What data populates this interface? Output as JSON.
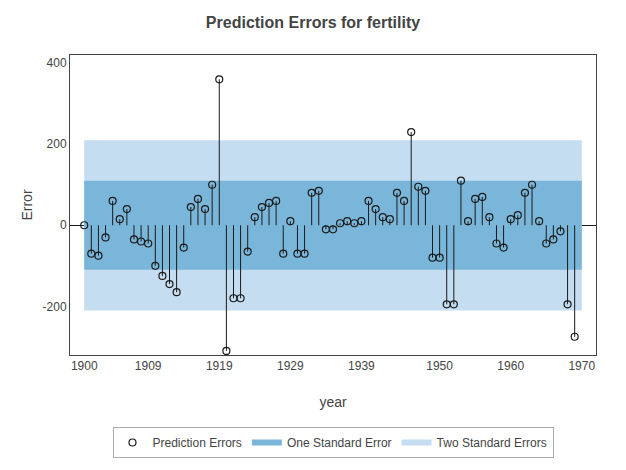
{
  "chart_data": {
    "type": "stem",
    "title": "Prediction Errors for fertility",
    "xlabel": "year",
    "ylabel": "Error",
    "x": [
      1900,
      1901,
      1902,
      1903,
      1904,
      1905,
      1906,
      1907,
      1908,
      1909,
      1910,
      1911,
      1912,
      1913,
      1914,
      1915,
      1916,
      1917,
      1918,
      1919,
      1920,
      1921,
      1922,
      1923,
      1924,
      1925,
      1926,
      1927,
      1928,
      1929,
      1930,
      1931,
      1932,
      1933,
      1934,
      1935,
      1936,
      1937,
      1938,
      1939,
      1940,
      1941,
      1942,
      1943,
      1944,
      1945,
      1946,
      1947,
      1948,
      1949,
      1950,
      1951,
      1952,
      1953,
      1954,
      1955,
      1956,
      1957,
      1958,
      1959,
      1960,
      1961,
      1962,
      1963,
      1964,
      1965,
      1966,
      1967,
      1968,
      1969
    ],
    "series": [
      {
        "name": "Prediction Errors",
        "color": "#1a1a1a",
        "marker": "circle-open",
        "values": [
          0,
          -70,
          -75,
          -30,
          60,
          15,
          40,
          -35,
          -40,
          -45,
          -100,
          -125,
          -145,
          -165,
          -55,
          45,
          65,
          40,
          100,
          360,
          -310,
          -180,
          -180,
          -65,
          20,
          45,
          55,
          60,
          -70,
          10,
          -70,
          -70,
          80,
          85,
          -10,
          -10,
          5,
          10,
          5,
          10,
          60,
          40,
          20,
          15,
          80,
          60,
          230,
          95,
          85,
          -80,
          -80,
          -195,
          -195,
          110,
          10,
          65,
          70,
          20,
          -45,
          -55,
          15,
          25,
          80,
          100,
          10,
          -45,
          -35,
          -15,
          -195,
          -275
        ]
      }
    ],
    "bands": [
      {
        "name": "Two Standard Errors",
        "x": [
          1900,
          1970
        ],
        "lower": -210,
        "upper": 210,
        "color": "#c5ddf0"
      },
      {
        "name": "One Standard Error",
        "x": [
          1900,
          1970
        ],
        "lower": -110,
        "upper": 110,
        "color": "#7ab6d9"
      }
    ],
    "xlim": [
      1898,
      1972
    ],
    "ylim": [
      -320,
      420
    ],
    "xticks": [
      1900,
      1909,
      1919,
      1929,
      1939,
      1950,
      1960,
      1970
    ],
    "yticks": [
      -200,
      0,
      200,
      400
    ],
    "grid": false,
    "legend": "bottom"
  }
}
